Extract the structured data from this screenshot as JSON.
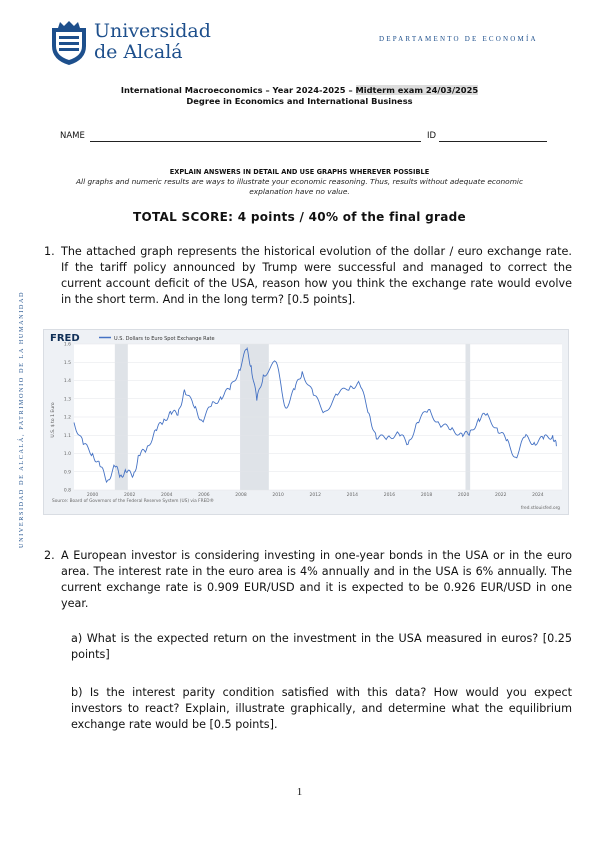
{
  "header": {
    "university_line1": "Universidad",
    "university_line2": "de Alcalá",
    "department": "DEPARTAMENTO DE ECONOMÍA",
    "vertical_text": "UNIVERSIDAD DE ALCALÁ, PATRIMONIO DE LA HUMANIDAD"
  },
  "exam": {
    "title_part1": "International Macroeconomics – Year 2024-2025 – ",
    "title_highlight": "Midterm exam 24/03/2025",
    "subtitle": "Degree in Economics and International Business",
    "name_label": "NAME",
    "id_label": "ID",
    "instructions_heading": "EXPLAIN ANSWERS IN DETAIL AND USE GRAPHS WHEREVER POSSIBLE",
    "instructions_line1": "All graphs and numeric results are ways to illustrate your economic reasoning. Thus, results without adequate economic",
    "instructions_line2": "explanation have no value.",
    "total_score": "TOTAL SCORE: 4 points / 40% of the final grade"
  },
  "questions": [
    {
      "number": "1.",
      "text": "The attached graph represents the historical evolution of the dollar / euro exchange rate. If the tariff policy announced by Trump were successful and managed to correct the current account deficit of the USA, reason how you think the exchange rate would evolve in the short term. And in the long term? [0.5 points]."
    },
    {
      "number": "2.",
      "text": "A European investor is considering investing in one-year bonds in the USA or in the euro area. The interest rate in the euro area is 4% annually and in the USA is 6% annually. The current exchange rate is 0.909 EUR/USD and it is expected to be 0.926 EUR/USD in one year.",
      "part_a": "a) What is the expected return on the investment in the USA measured in euros? [0.25 points]",
      "part_b": "b) Is the interest parity condition satisfied with this data? How would you expect investors to react? Explain, illustrate graphically, and determine what the equilibrium exchange rate would be [0.5 points]."
    }
  ],
  "page_number": "1",
  "chart_data": {
    "type": "line",
    "brand": "FRED",
    "legend": "U.S. Dollars to Euro Spot Exchange Rate",
    "ylabel": "U.S. $ to 1 Euro",
    "yticks": [
      "0.8",
      "0.9",
      "1.0",
      "1.1",
      "1.2",
      "1.3",
      "1.4",
      "1.5",
      "1.6"
    ],
    "ylim": [
      0.8,
      1.6
    ],
    "xticks": [
      "2000",
      "2002",
      "2004",
      "2006",
      "2008",
      "2010",
      "2012",
      "2014",
      "2016",
      "2018",
      "2020",
      "2022",
      "2024"
    ],
    "xlim": [
      1999,
      2025.3
    ],
    "recessions": [
      [
        2001.2,
        2001.9
      ],
      [
        2007.95,
        2009.5
      ],
      [
        2020.1,
        2020.35
      ]
    ],
    "series": [
      {
        "name": "U.S. Dollars to Euro Spot Exchange Rate",
        "color": "#4572c4",
        "x": [
          1999.0,
          1999.5,
          2000.0,
          2000.4,
          2000.8,
          2001.2,
          2001.5,
          2001.8,
          2002.2,
          2002.5,
          2002.9,
          2003.4,
          2003.8,
          2004.2,
          2004.6,
          2004.95,
          2005.5,
          2005.9,
          2006.4,
          2006.9,
          2007.4,
          2007.9,
          2008.3,
          2008.55,
          2008.85,
          2009.2,
          2009.9,
          2010.4,
          2010.9,
          2011.3,
          2011.9,
          2012.5,
          2013.2,
          2013.9,
          2014.4,
          2014.9,
          2015.3,
          2015.9,
          2016.5,
          2017.0,
          2017.5,
          2018.1,
          2018.7,
          2019.3,
          2019.9,
          2020.3,
          2020.8,
          2021.2,
          2021.8,
          2022.3,
          2022.8,
          2023.3,
          2023.8,
          2024.3,
          2024.8,
          2025.0
        ],
        "y": [
          1.17,
          1.05,
          1.0,
          0.93,
          0.85,
          0.93,
          0.88,
          0.9,
          0.88,
          0.99,
          1.02,
          1.13,
          1.17,
          1.23,
          1.21,
          1.35,
          1.25,
          1.18,
          1.26,
          1.31,
          1.35,
          1.46,
          1.57,
          1.48,
          1.29,
          1.43,
          1.5,
          1.25,
          1.35,
          1.45,
          1.32,
          1.23,
          1.32,
          1.37,
          1.38,
          1.22,
          1.08,
          1.09,
          1.11,
          1.05,
          1.17,
          1.24,
          1.16,
          1.13,
          1.11,
          1.1,
          1.19,
          1.21,
          1.14,
          1.07,
          0.98,
          1.09,
          1.06,
          1.08,
          1.1,
          1.04
        ]
      }
    ],
    "footer_left": "Source: Board of Governors of the Federal Reserve System (US) via FRED®",
    "footer_right": "fred.stlouisfed.org"
  }
}
